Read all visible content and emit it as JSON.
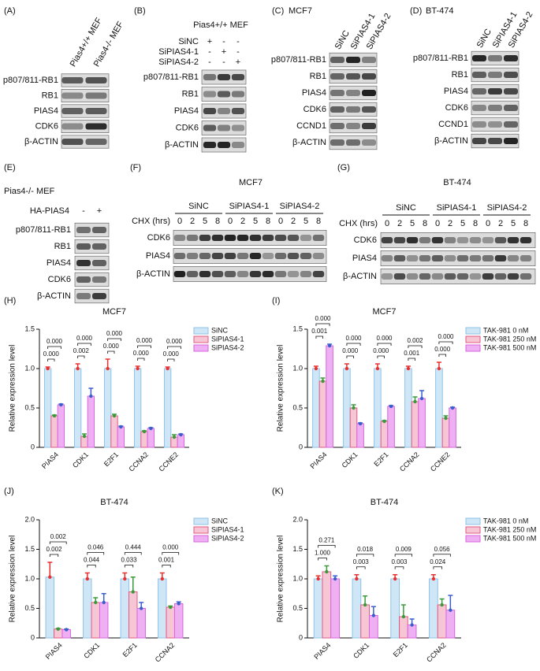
{
  "blots": [
    {
      "label": "(A)",
      "columns": [
        "Pias4+/+ MEF",
        "Pias4-/- MEF"
      ],
      "rows": [
        "p807/811-RB1",
        "RB1",
        "PIAS4",
        "CDK6",
        "β-ACTIN"
      ]
    },
    {
      "label": "(B)",
      "title": "Pias4+/+ MEF",
      "conditions": [
        {
          "name": "SiNC",
          "marks": [
            "+",
            "-",
            "-"
          ]
        },
        {
          "name": "SiPIAS4-1",
          "marks": [
            "-",
            "+",
            "-"
          ]
        },
        {
          "name": "SiPIAS4-2",
          "marks": [
            "-",
            "-",
            "+"
          ]
        }
      ],
      "rows": [
        "p807/811-RB1",
        "RB1",
        "PIAS4",
        "CDK6",
        "β-ACTIN"
      ]
    },
    {
      "label": "(C)",
      "title": "MCF7",
      "columns": [
        "SiNC",
        "SiPIAS4-1",
        "SiPIAS4-2"
      ],
      "rows": [
        "p807/811-RB1",
        "RB1",
        "PIAS4",
        "CDK6",
        "CCND1",
        "β-ACTIN"
      ]
    },
    {
      "label": "(D)",
      "title": "BT-474",
      "columns": [
        "SiNC",
        "SiPIAS4-1",
        "SiPIAS4-2"
      ],
      "rows": [
        "p807/811-RB1",
        "RB1",
        "PIAS4",
        "CDK6",
        "CCND1",
        "β-ACTIN"
      ]
    },
    {
      "label": "(E)",
      "title": "Pias4-/- MEF",
      "conditions": [
        {
          "name": "HA-PIAS4",
          "marks": [
            "-",
            "+"
          ]
        }
      ],
      "rows": [
        "p807/811-RB1",
        "RB1",
        "PIAS4",
        "CDK6",
        "β-ACTIN"
      ]
    },
    {
      "label": "(F)",
      "title": "MCF7",
      "groups": [
        "SiNC",
        "SiPIAS4-1",
        "SiPIAS4-2"
      ],
      "time_label": "CHX (hrs)",
      "times": [
        "0",
        "2",
        "5",
        "8"
      ],
      "rows": [
        "CDK6",
        "PIAS4",
        "β-ACTIN"
      ]
    },
    {
      "label": "(G)",
      "title": "BT-474",
      "groups": [
        "SiNC",
        "SiPIAS4-1",
        "SiPIAS4-2"
      ],
      "time_label": "CHX (hrs)",
      "times": [
        "0",
        "2",
        "5",
        "8"
      ],
      "rows": [
        "CDK6",
        "PIAS4",
        "β-ACTIN"
      ]
    }
  ],
  "chart_data": [
    {
      "type": "bar",
      "panel_label": "(H)",
      "title": "MCF7",
      "y_label": "Relative expression level",
      "categories": [
        "PIAS4",
        "CDK1",
        "E2F1",
        "CCNA2",
        "CCNE2"
      ],
      "series": [
        {
          "name": "SiNC",
          "color": "#cfe6f7",
          "edge_color": "#8ec3ea",
          "error_color": "#e8312f",
          "values": [
            1,
            1,
            1,
            1,
            1
          ],
          "errors": [
            0.02,
            0.06,
            0.12,
            0.03,
            0.02
          ]
        },
        {
          "name": "SiPIAS4-1",
          "color": "#f7c6d4",
          "edge_color": "#e05a85",
          "error_color": "#3a9a3a",
          "values": [
            0.4,
            0.14,
            0.4,
            0.2,
            0.13
          ],
          "errors": [
            0.01,
            0.03,
            0.02,
            0.01,
            0.03
          ]
        },
        {
          "name": "SiPIAS4-2",
          "color": "#eeb0f2",
          "edge_color": "#d866e0",
          "error_color": "#3a5fcd",
          "values": [
            0.54,
            0.65,
            0.26,
            0.24,
            0.16
          ],
          "errors": [
            0.01,
            0.1,
            0.01,
            0.01,
            0.01
          ]
        }
      ],
      "p_values": [
        [
          "0.000",
          "0.000"
        ],
        [
          "0.000",
          "0.002"
        ],
        [
          "0.000",
          "0.000"
        ],
        [
          "0.000",
          "0.000"
        ],
        [
          "0.000",
          "0.000"
        ]
      ],
      "ylim": [
        0,
        1.5
      ],
      "yticks": [
        0,
        0.5,
        {
          "value": 1,
          "label": "1.0"
        },
        1.5
      ]
    },
    {
      "type": "bar",
      "panel_label": "(I)",
      "title": "MCF7",
      "y_label": "Relative expression level",
      "categories": [
        "PIAS4",
        "CDK1",
        "E2F1",
        "CCNA2",
        "CCNE2"
      ],
      "series": [
        {
          "name": "TAK-981 0 nM",
          "color": "#cfe6f7",
          "edge_color": "#8ec3ea",
          "error_color": "#e8312f",
          "values": [
            1,
            1,
            1,
            1,
            1
          ],
          "errors": [
            0.03,
            0.06,
            0.06,
            0.03,
            0.08
          ]
        },
        {
          "name": "TAK-981 250 nM",
          "color": "#f7c6d4",
          "edge_color": "#e05a85",
          "error_color": "#3a9a3a",
          "values": [
            0.84,
            0.5,
            0.33,
            0.58,
            0.37
          ],
          "errors": [
            0.04,
            0.04,
            0.01,
            0.06,
            0.03
          ]
        },
        {
          "name": "TAK-981 500 nM",
          "color": "#eeb0f2",
          "edge_color": "#d866e0",
          "error_color": "#3a5fcd",
          "values": [
            1.29,
            0.3,
            0.52,
            0.62,
            0.5
          ],
          "errors": [
            0.02,
            0.01,
            0.01,
            0.1,
            0.01
          ]
        }
      ],
      "p_values": [
        [
          "0.000",
          "0.001"
        ],
        [
          "0.000",
          "0.000"
        ],
        [
          "0.000",
          "0.000"
        ],
        [
          "0.002",
          "0.001"
        ],
        [
          "0.000",
          "0.000"
        ]
      ],
      "ylim": [
        0,
        1.5
      ],
      "yticks": [
        0,
        0.5,
        {
          "value": 1,
          "label": "1.0"
        },
        1.5
      ]
    },
    {
      "type": "bar",
      "panel_label": "(J)",
      "title": "BT-474",
      "y_label": "Relative expression level",
      "categories": [
        "PIAS4",
        "CDK1",
        "E2F1",
        "CCNA2"
      ],
      "series": [
        {
          "name": "SiNC",
          "color": "#cfe6f7",
          "edge_color": "#8ec3ea",
          "error_color": "#e8312f",
          "values": [
            1.03,
            1,
            1,
            1
          ],
          "errors": [
            0.25,
            0.1,
            0.1,
            0.1
          ]
        },
        {
          "name": "SiPIAS4-1",
          "color": "#f7c6d4",
          "edge_color": "#e05a85",
          "error_color": "#3a9a3a",
          "values": [
            0.15,
            0.6,
            0.78,
            0.52
          ],
          "errors": [
            0.01,
            0.08,
            0.25,
            0.02
          ]
        },
        {
          "name": "SiPIAS4-2",
          "color": "#eeb0f2",
          "edge_color": "#d866e0",
          "error_color": "#3a5fcd",
          "values": [
            0.14,
            0.6,
            0.5,
            0.58
          ],
          "errors": [
            0.01,
            0.15,
            0.1,
            0.03
          ]
        }
      ],
      "p_values": [
        [
          "0.002",
          "0.002"
        ],
        [
          "0.046",
          "0.044"
        ],
        [
          "0.444",
          "0.033"
        ],
        [
          "0.000",
          "0.001"
        ]
      ],
      "ylim": [
        0,
        2
      ],
      "yticks": [
        0,
        0.5,
        {
          "value": 1,
          "label": "1.0"
        },
        1.5,
        {
          "value": 2,
          "label": "2.0"
        }
      ]
    },
    {
      "type": "bar",
      "panel_label": "(K)",
      "title": "BT-474",
      "y_label": "Relative expression level",
      "categories": [
        "PIAS4",
        "CDK1",
        "E2F1",
        "CCNA2"
      ],
      "series": [
        {
          "name": "TAK-981 0 nM",
          "color": "#cfe6f7",
          "edge_color": "#8ec3ea",
          "error_color": "#e8312f",
          "values": [
            1,
            1,
            1,
            1
          ],
          "errors": [
            0.05,
            0.07,
            0.07,
            0.07
          ]
        },
        {
          "name": "TAK-981 250 nM",
          "color": "#f7c6d4",
          "edge_color": "#e05a85",
          "error_color": "#3a9a3a",
          "values": [
            1.12,
            0.56,
            0.36,
            0.56
          ],
          "errors": [
            0.1,
            0.15,
            0.2,
            0.1
          ]
        },
        {
          "name": "TAK-981 500 nM",
          "color": "#eeb0f2",
          "edge_color": "#d866e0",
          "error_color": "#3a5fcd",
          "values": [
            1,
            0.38,
            0.22,
            0.47
          ],
          "errors": [
            0.05,
            0.15,
            0.1,
            0.25
          ]
        }
      ],
      "p_values": [
        [
          "0.271",
          "1.000"
        ],
        [
          "0.018",
          "0.003"
        ],
        [
          "0.009",
          "0.003"
        ],
        [
          "0.056",
          "0.024"
        ]
      ],
      "ylim": [
        0,
        2
      ],
      "yticks": [
        0,
        0.5,
        {
          "value": 1,
          "label": "1.0"
        },
        1.5,
        {
          "value": 2,
          "label": "2.0"
        }
      ]
    }
  ]
}
